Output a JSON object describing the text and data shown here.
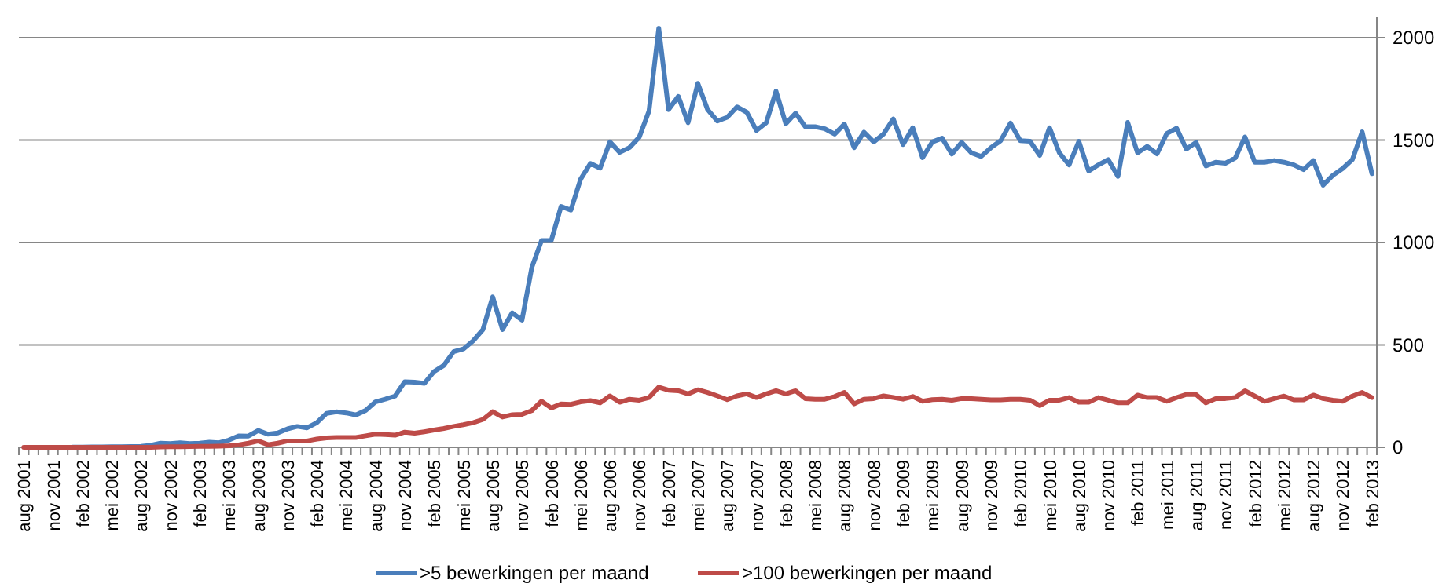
{
  "chart_data": {
    "type": "line",
    "categories": [
      "aug 2001",
      null,
      null,
      "nov 2001",
      null,
      null,
      "feb 2002",
      null,
      null,
      "mei 2002",
      null,
      null,
      "aug 2002",
      null,
      null,
      "nov 2002",
      null,
      null,
      "feb 2003",
      null,
      null,
      "mei 2003",
      null,
      null,
      "aug 2003",
      null,
      null,
      "nov 2003",
      null,
      null,
      "feb 2004",
      null,
      null,
      "mei 2004",
      null,
      null,
      "aug 2004",
      null,
      null,
      "nov 2004",
      null,
      null,
      "feb 2005",
      null,
      null,
      "mei 2005",
      null,
      null,
      "aug 2005",
      null,
      null,
      "nov 2005",
      null,
      null,
      "feb 2006",
      null,
      null,
      "mei 2006",
      null,
      null,
      "aug 2006",
      null,
      null,
      "nov 2006",
      null,
      null,
      "feb 2007",
      null,
      null,
      "mei 2007",
      null,
      null,
      "aug 2007",
      null,
      null,
      "nov 2007",
      null,
      null,
      "feb 2008",
      null,
      null,
      "mei 2008",
      null,
      null,
      "aug 2008",
      null,
      null,
      "nov 2008",
      null,
      null,
      "feb 2009",
      null,
      null,
      "mei 2009",
      null,
      null,
      "aug 2009",
      null,
      null,
      "nov 2009",
      null,
      null,
      "feb 2010",
      null,
      null,
      "mei 2010",
      null,
      null,
      "aug 2010",
      null,
      null,
      "nov 2010",
      null,
      null,
      "feb 2011",
      null,
      null,
      "mei 2011",
      null,
      null,
      "aug 2011",
      null,
      null,
      "nov 2011",
      null,
      null,
      "feb 2012",
      null,
      null,
      "mei 2012",
      null,
      null,
      "aug 2012",
      null,
      null,
      "nov 2012",
      null,
      null,
      "feb 2013"
    ],
    "series": [
      {
        "name": ">5 bewerkingen per maand",
        "color": "#4a7ebb",
        "values": [
          null,
          null,
          null,
          null,
          null,
          1,
          1,
          2,
          2,
          3,
          3,
          4,
          5,
          10,
          20,
          18,
          22,
          18,
          20,
          25,
          22,
          35,
          56,
          55,
          82,
          64,
          70,
          90,
          102,
          95,
          120,
          166,
          173,
          168,
          158,
          180,
          222,
          235,
          250,
          320,
          318,
          312,
          370,
          400,
          467,
          480,
          520,
          575,
          734,
          575,
          657,
          621,
          877,
          1010,
          1010,
          1176,
          1158,
          1309,
          1386,
          1363,
          1491,
          1440,
          1463,
          1514,
          1642,
          2046,
          1649,
          1713,
          1585,
          1777,
          1649,
          1593,
          1611,
          1662,
          1636,
          1547,
          1585,
          1739,
          1580,
          1631,
          1565,
          1565,
          1555,
          1529,
          1578,
          1463,
          1539,
          1491,
          1529,
          1603,
          1478,
          1560,
          1414,
          1491,
          1509,
          1432,
          1489,
          1438,
          1420,
          1463,
          1497,
          1583,
          1497,
          1494,
          1425,
          1560,
          1438,
          1379,
          1494,
          1349,
          1379,
          1405,
          1323,
          1586,
          1438,
          1469,
          1433,
          1532,
          1558,
          1456,
          1489,
          1374,
          1392,
          1387,
          1412,
          1515,
          1392,
          1392,
          1400,
          1392,
          1379,
          1356,
          1400,
          1280,
          1328,
          1361,
          1405,
          1540,
          1336
        ]
      },
      {
        "name": ">100 bewerkingen per maand",
        "color": "#be4b48",
        "values": [
          0,
          0,
          0,
          0,
          0,
          0,
          0,
          0,
          0,
          0,
          0,
          0,
          0,
          0,
          2,
          3,
          3,
          4,
          5,
          5,
          6,
          8,
          12,
          20,
          31,
          13,
          20,
          31,
          31,
          31,
          40,
          46,
          48,
          48,
          48,
          56,
          64,
          62,
          59,
          74,
          69,
          76,
          84,
          92,
          102,
          110,
          120,
          136,
          174,
          148,
          159,
          161,
          179,
          225,
          192,
          212,
          210,
          222,
          228,
          217,
          251,
          220,
          235,
          230,
          243,
          294,
          279,
          276,
          261,
          281,
          268,
          251,
          233,
          251,
          261,
          243,
          261,
          276,
          261,
          276,
          238,
          235,
          235,
          248,
          268,
          212,
          235,
          238,
          251,
          243,
          235,
          248,
          225,
          233,
          235,
          230,
          238,
          238,
          235,
          232,
          232,
          235,
          235,
          230,
          204,
          230,
          230,
          243,
          220,
          220,
          243,
          230,
          217,
          217,
          255,
          243,
          243,
          225,
          243,
          258,
          258,
          217,
          238,
          238,
          243,
          276,
          250,
          225,
          238,
          250,
          232,
          232,
          255,
          238,
          230,
          225,
          250,
          268,
          243
        ]
      }
    ],
    "ylim": [
      0,
      2100
    ],
    "yticks": [
      0,
      500,
      1000,
      1500,
      2000
    ],
    "grid": "y",
    "legend": "bottom"
  }
}
